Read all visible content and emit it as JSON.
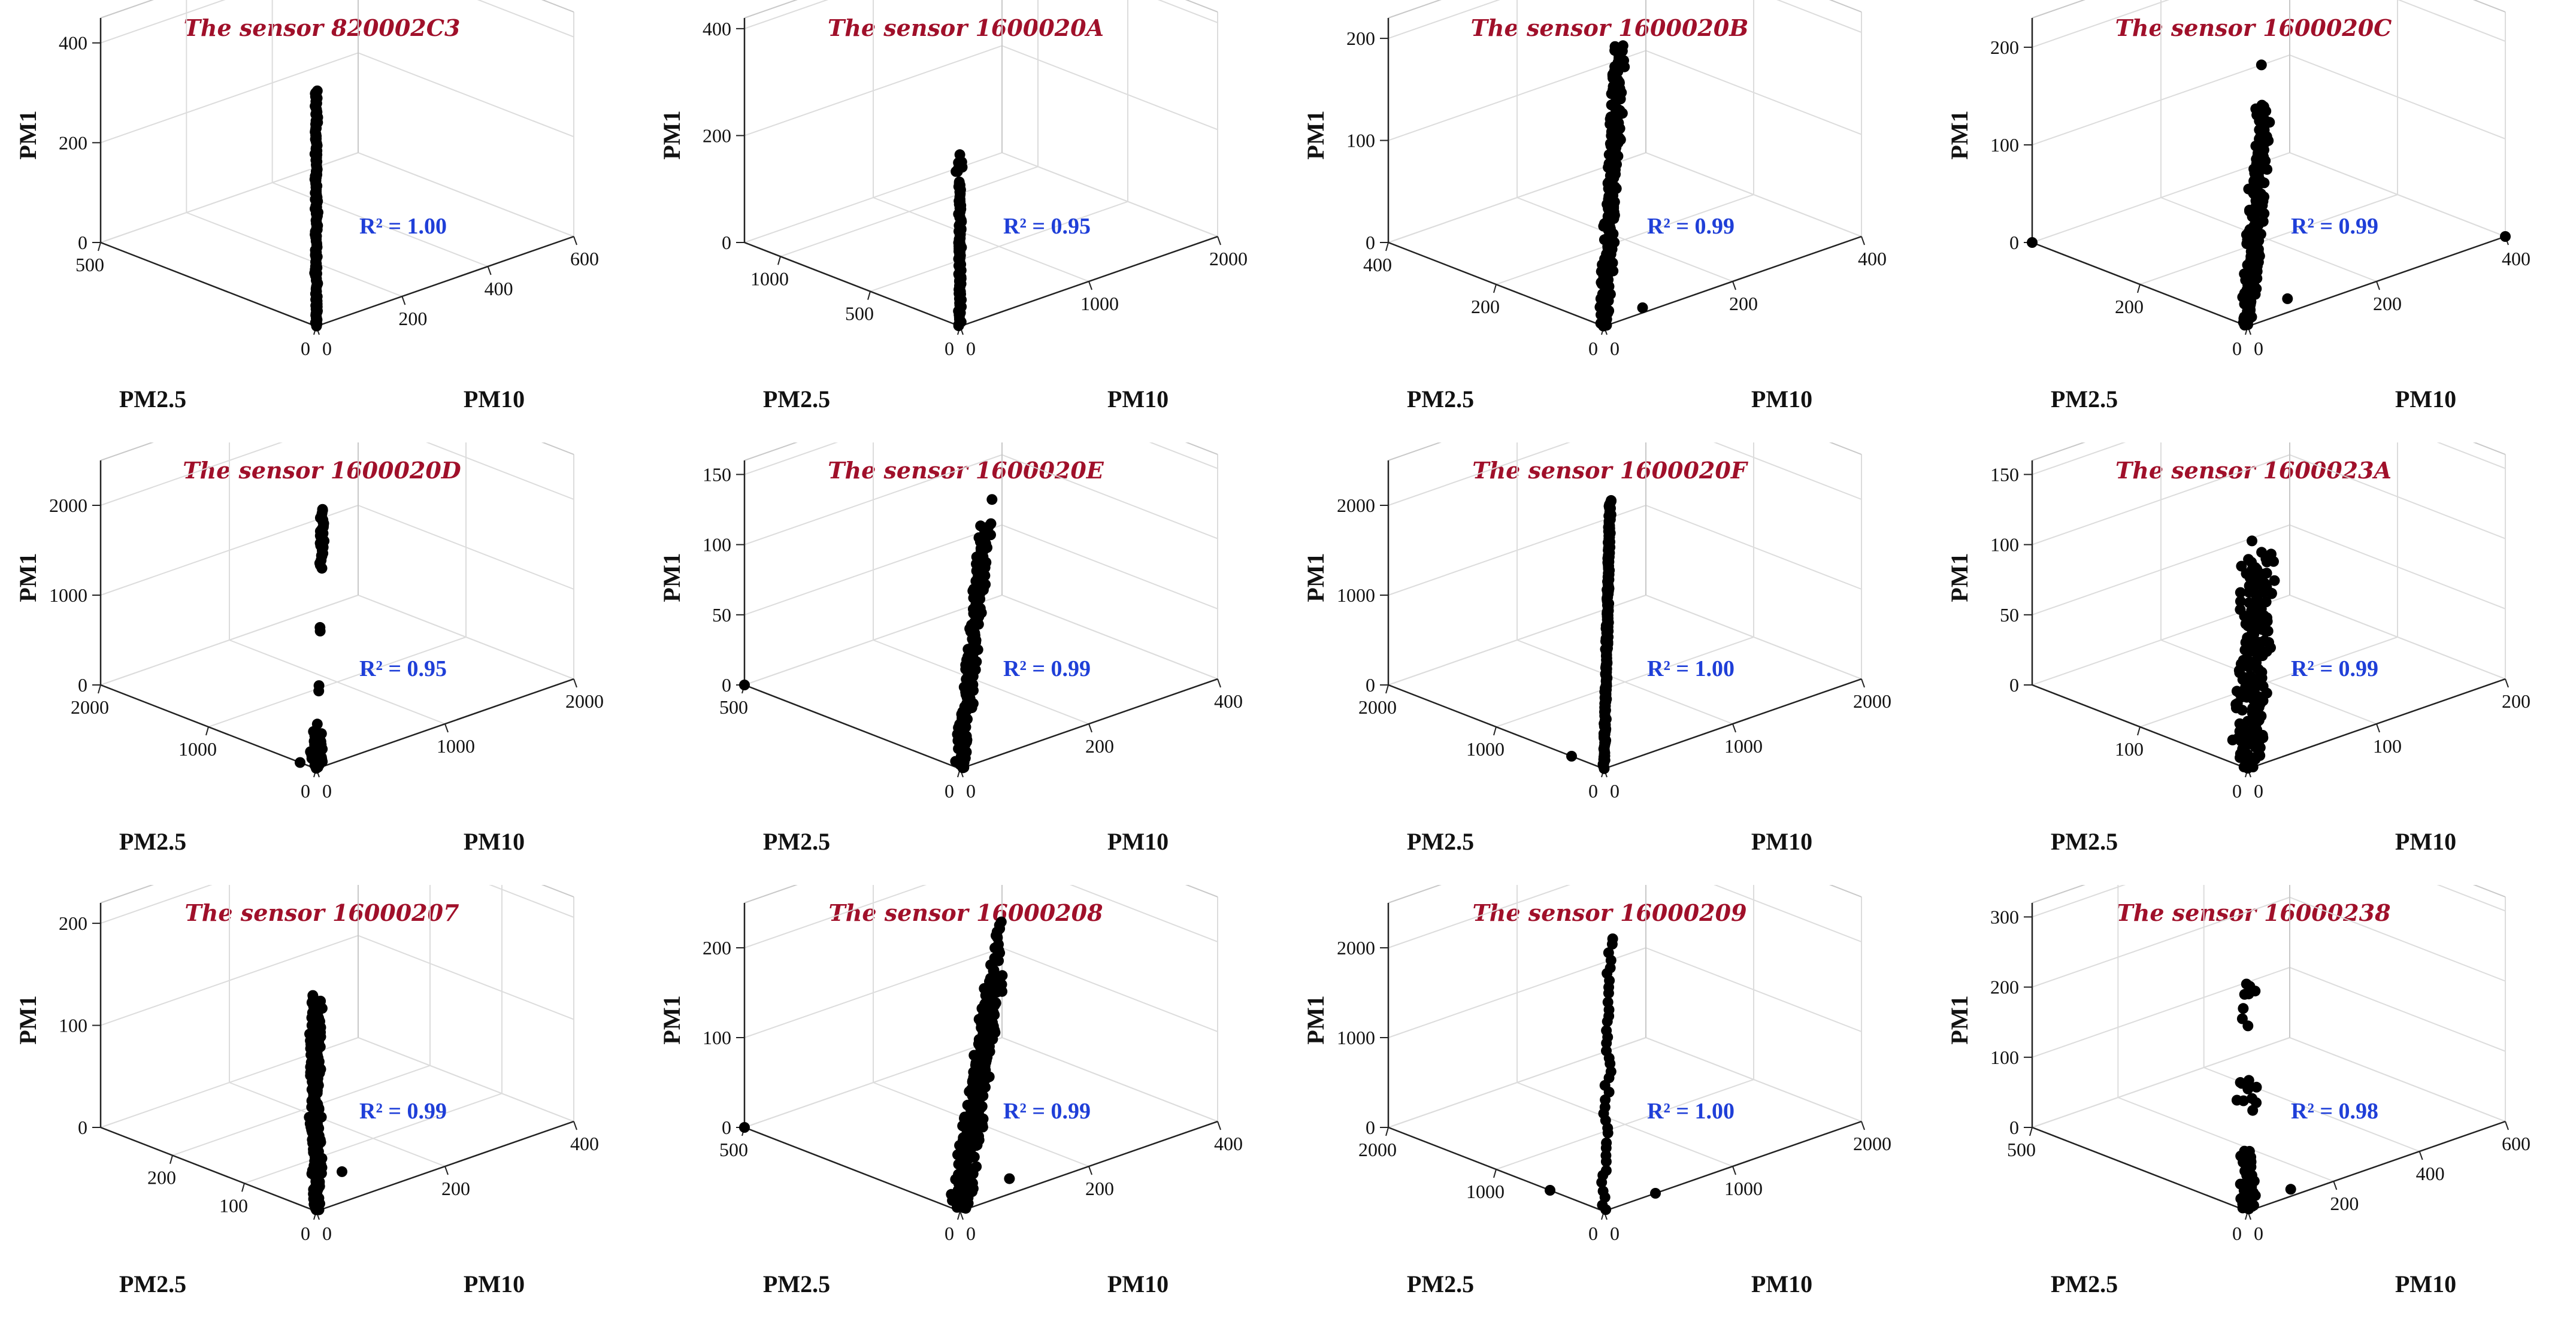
{
  "colors": {
    "title": "#a0102a",
    "r2": "#1f3fd8",
    "points": "#000000",
    "grid": "#dcdcdc",
    "axis": "#222222"
  },
  "chart_data": [
    {
      "type": "scatter",
      "title": "The sensor 820002C3",
      "xlabel": "PM10",
      "ylabel": "PM2.5",
      "zlabel": "PM1",
      "xlim": [
        0,
        600
      ],
      "ylim": [
        0,
        500
      ],
      "zlim": [
        0,
        450
      ],
      "xticks": [
        0,
        200,
        400,
        600
      ],
      "yticks": [
        0,
        500
      ],
      "zticks": [
        0,
        200,
        400
      ],
      "xtick_labels": [
        "0",
        "200",
        "400",
        "600"
      ],
      "ytick_labels": [
        "0",
        "500"
      ],
      "ztick_labels": [
        "0",
        "200",
        "400"
      ],
      "annotation": "R² = 1.00",
      "clusters": [
        {
          "shape": "line",
          "from": [
            0,
            0,
            0
          ],
          "to": [
            20,
            20,
            460
          ],
          "n": 150,
          "spread": 0.008
        }
      ]
    },
    {
      "type": "scatter",
      "title": "The sensor 1600020A",
      "xlabel": "PM10",
      "ylabel": "PM2.5",
      "zlabel": "PM1",
      "xlim": [
        0,
        2000
      ],
      "ylim": [
        0,
        1200
      ],
      "zlim": [
        0,
        420
      ],
      "xticks": [
        0,
        1000,
        2000
      ],
      "yticks": [
        0,
        500,
        1000
      ],
      "zticks": [
        0,
        200,
        400
      ],
      "xtick_labels": [
        "0",
        "1000",
        "2000"
      ],
      "ytick_labels": [
        "0",
        "500",
        "1000"
      ],
      "ztick_labels": [
        "0",
        "200",
        "400"
      ],
      "annotation": "R² = 0.95",
      "clusters": [
        {
          "shape": "line",
          "from": [
            5,
            5,
            0
          ],
          "to": [
            5,
            5,
            270
          ],
          "n": 90,
          "spread": 0.008
        },
        {
          "shape": "blob",
          "center": [
            20,
            20,
            300
          ],
          "size": [
            30,
            20,
            30
          ],
          "n": 12
        },
        {
          "shape": "point",
          "at": [
            5,
            5,
            320
          ]
        }
      ]
    },
    {
      "type": "scatter",
      "title": "The sensor 1600020B",
      "xlabel": "PM10",
      "ylabel": "PM2.5",
      "zlabel": "PM1",
      "xlim": [
        0,
        400
      ],
      "ylim": [
        0,
        400
      ],
      "zlim": [
        0,
        220
      ],
      "xticks": [
        0,
        200,
        400
      ],
      "yticks": [
        0,
        200,
        400
      ],
      "zticks": [
        0,
        100,
        200
      ],
      "xtick_labels": [
        "0",
        "200",
        "400"
      ],
      "ytick_labels": [
        "0",
        "200",
        "400"
      ],
      "ztick_labels": [
        "0",
        "100",
        "200"
      ],
      "annotation": "R² = 0.99",
      "clusters": [
        {
          "shape": "line",
          "from": [
            0,
            0,
            0
          ],
          "to": [
            150,
            150,
            210
          ],
          "n": 220,
          "spread": 0.03
        },
        {
          "shape": "point",
          "at": [
            60,
            0,
            5
          ]
        }
      ]
    },
    {
      "type": "scatter",
      "title": "The sensor 1600020C",
      "xlabel": "PM10",
      "ylabel": "PM2.5",
      "zlabel": "PM1",
      "xlim": [
        0,
        400
      ],
      "ylim": [
        0,
        400
      ],
      "zlim": [
        0,
        230
      ],
      "xticks": [
        0,
        200,
        400
      ],
      "yticks": [
        0,
        200
      ],
      "zticks": [
        0,
        100,
        200
      ],
      "xtick_labels": [
        "0",
        "200",
        "400"
      ],
      "ytick_labels": [
        "0",
        "200"
      ],
      "ztick_labels": [
        "0",
        "100",
        "200"
      ],
      "annotation": "R² = 0.99",
      "clusters": [
        {
          "shape": "line",
          "from": [
            0,
            0,
            0
          ],
          "to": [
            150,
            150,
            160
          ],
          "n": 180,
          "spread": 0.04
        },
        {
          "shape": "point",
          "at": [
            130,
            130,
            210
          ]
        },
        {
          "shape": "point",
          "at": [
            400,
            0,
            0
          ]
        },
        {
          "shape": "point",
          "at": [
            0,
            400,
            0
          ]
        },
        {
          "shape": "point",
          "at": [
            70,
            10,
            10
          ]
        }
      ]
    },
    {
      "type": "scatter",
      "title": "The sensor 1600020D",
      "xlabel": "PM10",
      "ylabel": "PM2.5",
      "zlabel": "PM1",
      "xlim": [
        0,
        2000
      ],
      "ylim": [
        0,
        2000
      ],
      "zlim": [
        0,
        2500
      ],
      "xticks": [
        0,
        1000,
        2000
      ],
      "yticks": [
        0,
        1000,
        2000
      ],
      "zticks": [
        0,
        1000,
        2000
      ],
      "xtick_labels": [
        "0",
        "1000",
        "2000"
      ],
      "ytick_labels": [
        "0",
        "1000",
        "2000"
      ],
      "ztick_labels": [
        "0",
        "1000",
        "2000"
      ],
      "annotation": "R² = 0.95",
      "clusters": [
        {
          "shape": "line",
          "from": [
            0,
            0,
            0
          ],
          "to": [
            100,
            100,
            300
          ],
          "n": 70,
          "spread": 0.03
        },
        {
          "shape": "line",
          "from": [
            250,
            250,
            2000
          ],
          "to": [
            300,
            300,
            2600
          ],
          "n": 30,
          "spread": 0.01
        },
        {
          "shape": "point",
          "at": [
            180,
            180,
            1400
          ]
        },
        {
          "shape": "point",
          "at": [
            190,
            190,
            1350
          ]
        },
        {
          "shape": "point",
          "at": [
            130,
            130,
            800
          ]
        },
        {
          "shape": "point",
          "at": [
            120,
            120,
            750
          ]
        },
        {
          "shape": "point",
          "at": [
            50,
            50,
            450
          ]
        },
        {
          "shape": "point",
          "at": [
            0,
            150,
            0
          ]
        }
      ]
    },
    {
      "type": "scatter",
      "title": "The sensor 1600020E",
      "xlabel": "PM10",
      "ylabel": "PM2.5",
      "zlabel": "PM1",
      "xlim": [
        0,
        400
      ],
      "ylim": [
        0,
        500
      ],
      "zlim": [
        0,
        160
      ],
      "xticks": [
        0,
        200,
        400
      ],
      "yticks": [
        0,
        500
      ],
      "zticks": [
        0,
        50,
        100,
        150
      ],
      "xtick_labels": [
        "0",
        "200",
        "400"
      ],
      "ytick_labels": [
        "0",
        "500"
      ],
      "ztick_labels": [
        "0",
        "50",
        "100",
        "150"
      ],
      "annotation": "R² = 0.99",
      "clusters": [
        {
          "shape": "line",
          "from": [
            0,
            0,
            0
          ],
          "to": [
            120,
            120,
            140
          ],
          "n": 170,
          "spread": 0.03
        },
        {
          "shape": "point",
          "at": [
            150,
            150,
            150
          ]
        },
        {
          "shape": "point",
          "at": [
            0,
            500,
            0
          ]
        },
        {
          "shape": "point",
          "at": [
            60,
            60,
            110
          ]
        }
      ]
    },
    {
      "type": "scatter",
      "title": "The sensor 1600020F",
      "xlabel": "PM10",
      "ylabel": "PM2.5",
      "zlabel": "PM1",
      "xlim": [
        0,
        2000
      ],
      "ylim": [
        0,
        2000
      ],
      "zlim": [
        0,
        2500
      ],
      "xticks": [
        0,
        1000,
        2000
      ],
      "yticks": [
        0,
        1000,
        2000
      ],
      "zticks": [
        0,
        1000,
        2000
      ],
      "xtick_labels": [
        "0",
        "1000",
        "2000"
      ],
      "ytick_labels": [
        "0",
        "1000",
        "2000"
      ],
      "ztick_labels": [
        "0",
        "1000",
        "2000"
      ],
      "annotation": "R² = 1.00",
      "clusters": [
        {
          "shape": "line",
          "from": [
            0,
            0,
            0
          ],
          "to": [
            300,
            300,
            2700
          ],
          "n": 190,
          "spread": 0.006
        },
        {
          "shape": "point",
          "at": [
            0,
            300,
            0
          ]
        }
      ]
    },
    {
      "type": "scatter",
      "title": "The sensor 1600023A",
      "xlabel": "PM10",
      "ylabel": "PM2.5",
      "zlabel": "PM1",
      "xlim": [
        0,
        200
      ],
      "ylim": [
        0,
        200
      ],
      "zlim": [
        0,
        160
      ],
      "xticks": [
        0,
        100,
        200
      ],
      "yticks": [
        0,
        100
      ],
      "zticks": [
        0,
        50,
        100,
        150
      ],
      "xtick_labels": [
        "0",
        "100",
        "200"
      ],
      "ytick_labels": [
        "0",
        "100"
      ],
      "ztick_labels": [
        "0",
        "50",
        "100",
        "150"
      ],
      "annotation": "R² = 0.99",
      "clusters": [
        {
          "shape": "line",
          "from": [
            0,
            0,
            0
          ],
          "to": [
            50,
            50,
            120
          ],
          "n": 200,
          "spread": 0.08
        },
        {
          "shape": "point",
          "at": [
            20,
            20,
            150
          ]
        }
      ]
    },
    {
      "type": "scatter",
      "title": "The sensor 16000207",
      "xlabel": "PM10",
      "ylabel": "PM2.5",
      "zlabel": "PM1",
      "xlim": [
        0,
        400
      ],
      "ylim": [
        0,
        300
      ],
      "zlim": [
        0,
        220
      ],
      "xticks": [
        0,
        200,
        400
      ],
      "yticks": [
        0,
        100,
        200
      ],
      "zticks": [
        0,
        100,
        200
      ],
      "xtick_labels": [
        "0",
        "200",
        "400"
      ],
      "ytick_labels": [
        "0",
        "100",
        "200"
      ],
      "ztick_labels": [
        "0",
        "100",
        "200"
      ],
      "annotation": "R² = 0.99",
      "clusters": [
        {
          "shape": "line",
          "from": [
            2,
            2,
            0
          ],
          "to": [
            10,
            10,
            205
          ],
          "n": 220,
          "spread": 0.03
        },
        {
          "shape": "point",
          "at": [
            40,
            0,
            30
          ]
        }
      ]
    },
    {
      "type": "scatter",
      "title": "The sensor 16000208",
      "xlabel": "PM10",
      "ylabel": "PM2.5",
      "zlabel": "PM1",
      "xlim": [
        0,
        400
      ],
      "ylim": [
        0,
        500
      ],
      "zlim": [
        0,
        250
      ],
      "xticks": [
        0,
        200,
        400
      ],
      "yticks": [
        0,
        500
      ],
      "zticks": [
        0,
        100,
        200
      ],
      "xtick_labels": [
        "0",
        "200",
        "400"
      ],
      "ytick_labels": [
        "0",
        "500"
      ],
      "ztick_labels": [
        "0",
        "100",
        "200"
      ],
      "annotation": "R² = 0.99",
      "clusters": [
        {
          "shape": "line",
          "from": [
            0,
            0,
            0
          ],
          "to": [
            160,
            160,
            190
          ],
          "n": 260,
          "spread": 0.05
        },
        {
          "shape": "line",
          "from": [
            150,
            150,
            180
          ],
          "to": [
            190,
            190,
            240
          ],
          "n": 20,
          "spread": 0.02
        },
        {
          "shape": "point",
          "at": [
            0,
            500,
            0
          ]
        },
        {
          "shape": "point",
          "at": [
            90,
            20,
            10
          ]
        }
      ]
    },
    {
      "type": "scatter",
      "title": "The sensor 16000209",
      "xlabel": "PM10",
      "ylabel": "PM2.5",
      "zlabel": "PM1",
      "xlim": [
        0,
        2000
      ],
      "ylim": [
        0,
        2000
      ],
      "zlim": [
        0,
        2500
      ],
      "xticks": [
        0,
        1000,
        2000
      ],
      "yticks": [
        0,
        1000,
        2000
      ],
      "zticks": [
        0,
        1000,
        2000
      ],
      "xtick_labels": [
        "0",
        "1000",
        "2000"
      ],
      "ytick_labels": [
        "0",
        "1000",
        "2000"
      ],
      "ztick_labels": [
        "0",
        "1000",
        "2000"
      ],
      "annotation": "R² = 1.00",
      "clusters": [
        {
          "shape": "line",
          "from": [
            0,
            0,
            0
          ],
          "to": [
            350,
            350,
            2700
          ],
          "n": 40,
          "spread": 0.015
        },
        {
          "shape": "point",
          "at": [
            0,
            500,
            0
          ]
        },
        {
          "shape": "point",
          "at": [
            400,
            0,
            0
          ]
        }
      ]
    },
    {
      "type": "scatter",
      "title": "The sensor 16000238",
      "xlabel": "PM10",
      "ylabel": "PM2.5",
      "zlabel": "PM1",
      "xlim": [
        0,
        600
      ],
      "ylim": [
        0,
        500
      ],
      "zlim": [
        0,
        320
      ],
      "xticks": [
        0,
        200,
        400,
        600
      ],
      "yticks": [
        0,
        500
      ],
      "zticks": [
        0,
        100,
        200,
        300
      ],
      "xtick_labels": [
        "0",
        "200",
        "400",
        "600"
      ],
      "ytick_labels": [
        "0",
        "500"
      ],
      "ztick_labels": [
        "0",
        "100",
        "200",
        "300"
      ],
      "annotation": "R² = 0.98",
      "clusters": [
        {
          "shape": "blob",
          "center": [
            10,
            10,
            40
          ],
          "size": [
            20,
            20,
            80
          ],
          "n": 70
        },
        {
          "shape": "blob",
          "center": [
            40,
            40,
            150
          ],
          "size": [
            40,
            40,
            40
          ],
          "n": 10
        },
        {
          "shape": "blob",
          "center": [
            70,
            70,
            260
          ],
          "size": [
            40,
            40,
            80
          ],
          "n": 8
        },
        {
          "shape": "point",
          "at": [
            100,
            0,
            10
          ]
        }
      ]
    }
  ]
}
